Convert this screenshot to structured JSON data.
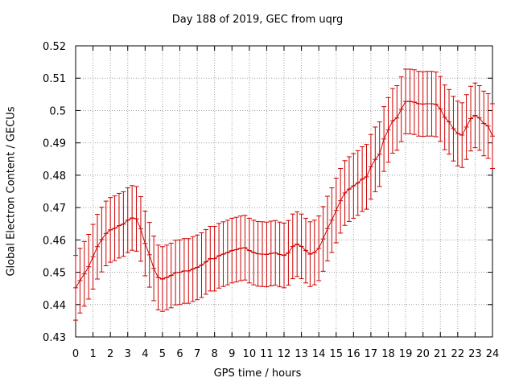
{
  "chart_data": {
    "type": "line",
    "title": "Day 188 of 2019, GEC from uqrg",
    "xlabel": "GPS time / hours",
    "ylabel": "Global Electron Content / GECUs",
    "xlim": [
      0,
      24
    ],
    "ylim": [
      0.43,
      0.52
    ],
    "xticks": [
      0,
      1,
      2,
      3,
      4,
      5,
      6,
      7,
      8,
      9,
      10,
      11,
      12,
      13,
      14,
      15,
      16,
      17,
      18,
      19,
      20,
      21,
      22,
      23,
      24
    ],
    "yticks": [
      0.43,
      0.44,
      0.45,
      0.46,
      0.47,
      0.48,
      0.49,
      0.5,
      0.51,
      0.52
    ],
    "ytick_labels": [
      "0.43",
      "0.44",
      "0.45",
      "0.46",
      "0.47",
      "0.48",
      "0.49",
      "0.5",
      "0.51",
      "0.52"
    ],
    "grid": true,
    "error_bar_half_width": 0.01,
    "color": "#cc0000",
    "x": [
      0,
      0.25,
      0.5,
      0.75,
      1,
      1.25,
      1.5,
      1.75,
      2,
      2.25,
      2.5,
      2.75,
      3,
      3.25,
      3.5,
      3.75,
      4,
      4.25,
      4.5,
      4.75,
      5,
      5.25,
      5.5,
      5.75,
      6,
      6.25,
      6.5,
      6.75,
      7,
      7.25,
      7.5,
      7.75,
      8,
      8.25,
      8.5,
      8.75,
      9,
      9.25,
      9.5,
      9.75,
      10,
      10.25,
      10.5,
      10.75,
      11,
      11.25,
      11.5,
      11.75,
      12,
      12.25,
      12.5,
      12.75,
      13,
      13.25,
      13.5,
      13.75,
      14,
      14.25,
      14.5,
      14.75,
      15,
      15.25,
      15.5,
      15.75,
      16,
      16.25,
      16.5,
      16.75,
      17,
      17.25,
      17.5,
      17.75,
      18,
      18.25,
      18.5,
      18.75,
      19,
      19.25,
      19.5,
      19.75,
      20,
      20.25,
      20.5,
      20.75,
      21,
      21.25,
      21.5,
      21.75,
      22,
      22.25,
      22.5,
      22.75,
      23,
      23.25,
      23.5,
      23.75,
      24
    ],
    "values": [
      0.4452,
      0.4474,
      0.4495,
      0.4517,
      0.4548,
      0.4579,
      0.4601,
      0.462,
      0.4631,
      0.4636,
      0.4644,
      0.4649,
      0.4661,
      0.4668,
      0.4665,
      0.4634,
      0.4589,
      0.4554,
      0.4512,
      0.4484,
      0.4479,
      0.4484,
      0.449,
      0.4499,
      0.45,
      0.4504,
      0.4504,
      0.451,
      0.4515,
      0.4522,
      0.4532,
      0.4542,
      0.4542,
      0.4551,
      0.4556,
      0.4561,
      0.4567,
      0.457,
      0.4574,
      0.4576,
      0.4567,
      0.4561,
      0.4557,
      0.4556,
      0.4555,
      0.4558,
      0.456,
      0.4555,
      0.4552,
      0.456,
      0.458,
      0.4587,
      0.458,
      0.4567,
      0.4556,
      0.4561,
      0.4574,
      0.4603,
      0.4635,
      0.4661,
      0.4691,
      0.4721,
      0.4745,
      0.4757,
      0.4767,
      0.4776,
      0.4788,
      0.4795,
      0.4826,
      0.4849,
      0.4865,
      0.4912,
      0.494,
      0.4968,
      0.4977,
      0.5004,
      0.5028,
      0.5028,
      0.5026,
      0.5021,
      0.502,
      0.5021,
      0.5021,
      0.5019,
      0.5005,
      0.4979,
      0.4965,
      0.4944,
      0.4929,
      0.4924,
      0.4949,
      0.4975,
      0.4985,
      0.4977,
      0.496,
      0.4952,
      0.4921
    ]
  }
}
